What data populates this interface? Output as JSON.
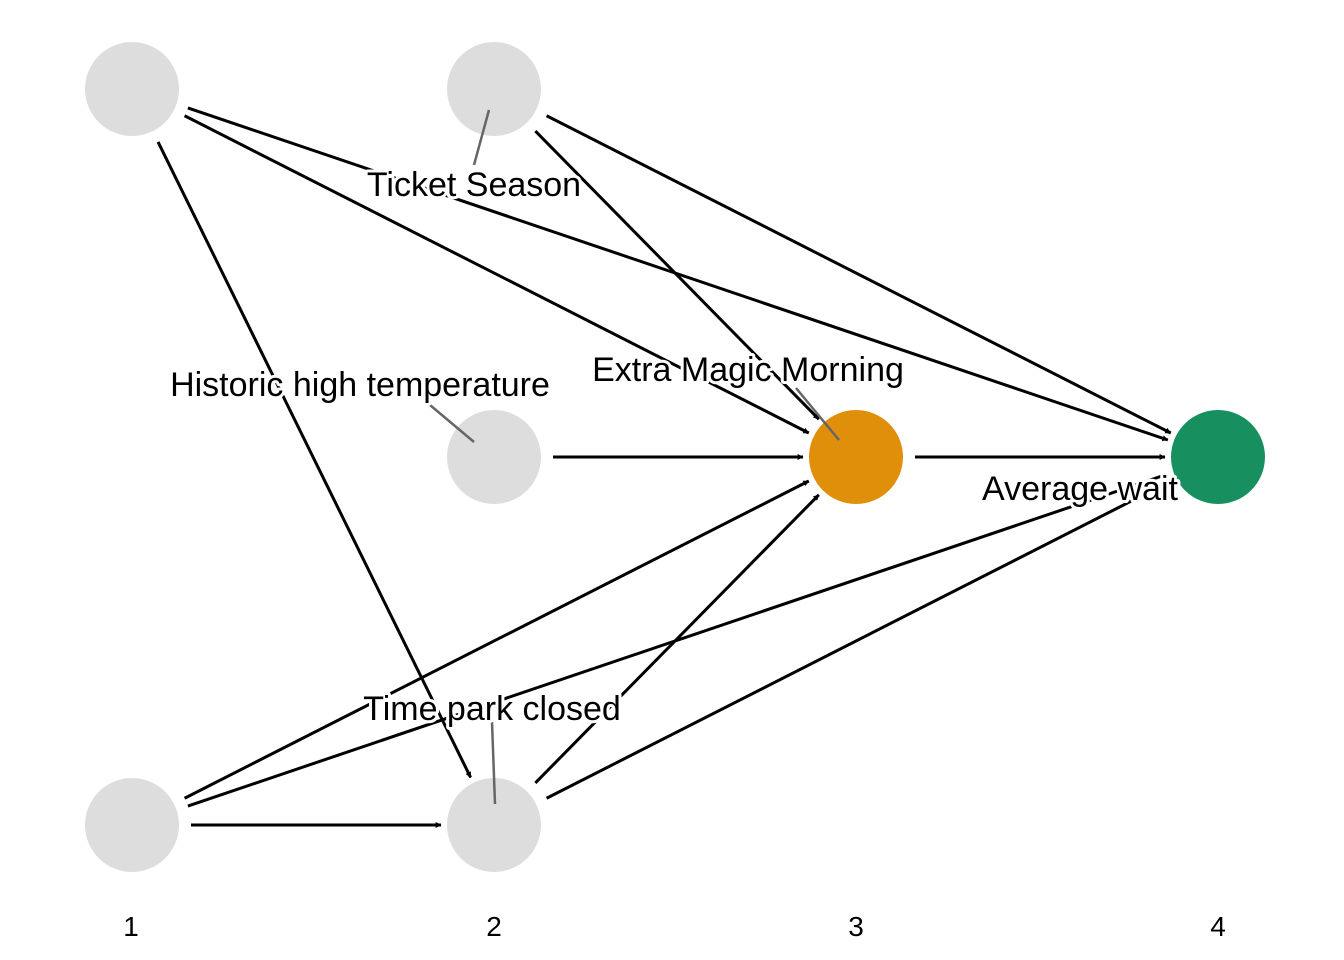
{
  "diagram": {
    "nodes": [
      {
        "id": "unlabeled_1",
        "label": "",
        "color": "#dddddd"
      },
      {
        "id": "ticket_season",
        "label": "Ticket Season",
        "color": "#dddddd"
      },
      {
        "id": "historic_high_temperature",
        "label": "Historic high temperature",
        "color": "#dddddd"
      },
      {
        "id": "unlabeled_2",
        "label": "",
        "color": "#dddddd"
      },
      {
        "id": "time_park_closed",
        "label": "Time park closed",
        "color": "#dddddd"
      },
      {
        "id": "extra_magic_morning",
        "label": "Extra Magic Morning",
        "color": "#e08f0a"
      },
      {
        "id": "average_wait",
        "label": "Average wait",
        "color": "#178f5f"
      }
    ],
    "edges": [
      [
        "unlabeled_1",
        "extra_magic_morning"
      ],
      [
        "unlabeled_1",
        "average_wait"
      ],
      [
        "unlabeled_1",
        "time_park_closed"
      ],
      [
        "ticket_season",
        "extra_magic_morning"
      ],
      [
        "ticket_season",
        "average_wait"
      ],
      [
        "historic_high_temperature",
        "extra_magic_morning"
      ],
      [
        "unlabeled_2",
        "time_park_closed"
      ],
      [
        "unlabeled_2",
        "extra_magic_morning"
      ],
      [
        "unlabeled_2",
        "average_wait"
      ],
      [
        "time_park_closed",
        "extra_magic_morning"
      ],
      [
        "time_park_closed",
        "average_wait"
      ],
      [
        "extra_magic_morning",
        "average_wait"
      ]
    ],
    "axis_labels": [
      "1",
      "2",
      "3",
      "4"
    ]
  }
}
